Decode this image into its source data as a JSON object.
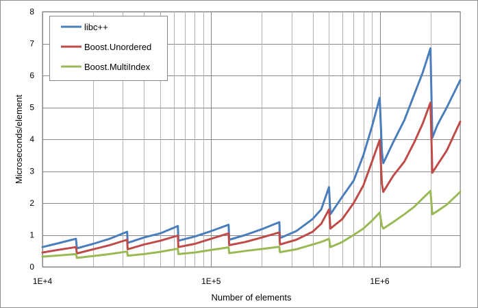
{
  "chart_data": {
    "type": "line",
    "xlabel": "Number of elements",
    "ylabel": "Microseconds/element",
    "x_scale": "log",
    "xlim": [
      10000,
      3000000
    ],
    "ylim": [
      0,
      8
    ],
    "y_ticks": [
      "0",
      "1",
      "2",
      "3",
      "4",
      "5",
      "6",
      "7",
      "8"
    ],
    "x_ticks": [
      {
        "value": 10000,
        "label": "1E+4"
      },
      {
        "value": 100000,
        "label": "1E+5"
      },
      {
        "value": 1000000,
        "label": "1E+6"
      }
    ],
    "grid": "on",
    "legend_position": "top-left",
    "series": [
      {
        "name": "libc++",
        "color": "#4a7ebb",
        "x": [
          10000,
          12000,
          15800,
          16000,
          20000,
          25000,
          31800,
          32000,
          40000,
          50000,
          63500,
          64000,
          80000,
          100000,
          127000,
          128000,
          160000,
          200000,
          254000,
          256000,
          320000,
          400000,
          450000,
          500000,
          510000,
          600000,
          700000,
          800000,
          900000,
          1000000,
          1030000,
          1050000,
          1200000,
          1400000,
          1600000,
          1800000,
          2000000,
          2050000,
          2200000,
          2500000,
          3000000
        ],
        "values": [
          0.62,
          0.72,
          0.88,
          0.58,
          0.72,
          0.88,
          1.1,
          0.75,
          0.92,
          1.05,
          1.28,
          0.82,
          0.95,
          1.12,
          1.32,
          0.85,
          1.0,
          1.18,
          1.4,
          0.9,
          1.12,
          1.5,
          1.8,
          2.5,
          1.65,
          2.2,
          2.7,
          3.5,
          4.4,
          5.3,
          3.6,
          3.25,
          3.9,
          4.6,
          5.4,
          6.1,
          6.85,
          4.05,
          4.45,
          5.0,
          5.85
        ]
      },
      {
        "name": "Boost.Unordered",
        "color": "#be4b48",
        "x": [
          10000,
          12000,
          15800,
          16000,
          20000,
          25000,
          31800,
          32000,
          40000,
          50000,
          63500,
          64000,
          80000,
          100000,
          127000,
          128000,
          160000,
          200000,
          254000,
          256000,
          320000,
          400000,
          450000,
          500000,
          510000,
          600000,
          700000,
          800000,
          900000,
          1000000,
          1030000,
          1050000,
          1200000,
          1400000,
          1600000,
          1800000,
          2000000,
          2050000,
          2200000,
          2500000,
          3000000
        ],
        "values": [
          0.45,
          0.52,
          0.62,
          0.42,
          0.55,
          0.68,
          0.85,
          0.55,
          0.7,
          0.82,
          0.98,
          0.62,
          0.72,
          0.88,
          1.05,
          0.68,
          0.78,
          0.92,
          1.08,
          0.7,
          0.85,
          1.1,
          1.35,
          1.8,
          1.2,
          1.5,
          2.0,
          2.55,
          3.3,
          3.98,
          2.6,
          2.35,
          2.85,
          3.3,
          3.9,
          4.5,
          5.15,
          2.95,
          3.2,
          3.65,
          4.55
        ]
      },
      {
        "name": "Boost.MultiIndex",
        "color": "#98b954",
        "x": [
          10000,
          12000,
          15800,
          16000,
          20000,
          25000,
          31800,
          32000,
          40000,
          50000,
          63500,
          64000,
          80000,
          100000,
          127000,
          128000,
          160000,
          200000,
          254000,
          256000,
          320000,
          400000,
          450000,
          500000,
          510000,
          600000,
          700000,
          800000,
          900000,
          1000000,
          1030000,
          1050000,
          1200000,
          1400000,
          1600000,
          1800000,
          2000000,
          2050000,
          2200000,
          2500000,
          3000000
        ],
        "values": [
          0.32,
          0.35,
          0.4,
          0.28,
          0.34,
          0.4,
          0.48,
          0.35,
          0.4,
          0.47,
          0.57,
          0.4,
          0.45,
          0.53,
          0.61,
          0.43,
          0.5,
          0.56,
          0.63,
          0.46,
          0.55,
          0.7,
          0.78,
          0.88,
          0.62,
          0.78,
          1.0,
          1.2,
          1.45,
          1.7,
          1.28,
          1.2,
          1.4,
          1.65,
          1.88,
          2.15,
          2.38,
          1.65,
          1.75,
          1.95,
          2.35
        ]
      }
    ]
  }
}
